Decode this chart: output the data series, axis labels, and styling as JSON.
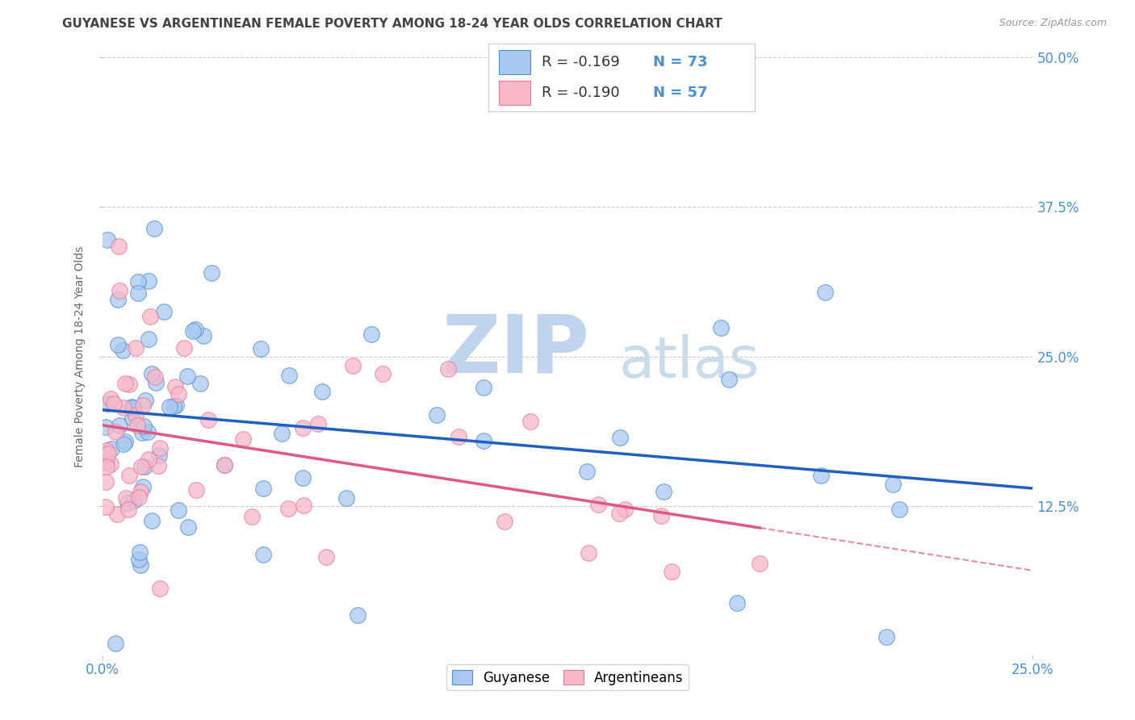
{
  "title": "GUYANESE VS ARGENTINEAN FEMALE POVERTY AMONG 18-24 YEAR OLDS CORRELATION CHART",
  "source": "Source: ZipAtlas.com",
  "ylabel": "Female Poverty Among 18-24 Year Olds",
  "xlim": [
    0.0,
    0.25
  ],
  "ylim": [
    0.0,
    0.5
  ],
  "ytick_labels": [
    "12.5%",
    "25.0%",
    "37.5%",
    "50.0%"
  ],
  "ytick_values": [
    0.125,
    0.25,
    0.375,
    0.5
  ],
  "xtick_values": [
    0.0,
    0.25
  ],
  "xtick_labels": [
    "0.0%",
    "25.0%"
  ],
  "legend_r_blue": "-0.169",
  "legend_n_blue": "73",
  "legend_r_pink": "-0.190",
  "legend_n_pink": "57",
  "blue_fill": "#A8C8F0",
  "pink_fill": "#F8B8C8",
  "blue_edge": "#5090D0",
  "pink_edge": "#E878A0",
  "blue_line": "#2060C0",
  "pink_line": "#E05888",
  "wm_zip_color": "#C0D4EE",
  "wm_atlas_color": "#C8DCEC",
  "background_color": "#FFFFFF",
  "grid_color": "#CCCCCC",
  "title_color": "#444444",
  "axis_label_color": "#666666",
  "tick_label_color": "#4A90D9",
  "source_color": "#999999",
  "n_blue": 73,
  "n_pink": 57,
  "R_blue": -0.169,
  "R_pink": -0.19,
  "blue_intercept": 0.205,
  "blue_slope": -0.32,
  "pink_intercept": 0.205,
  "pink_slope": -0.82
}
